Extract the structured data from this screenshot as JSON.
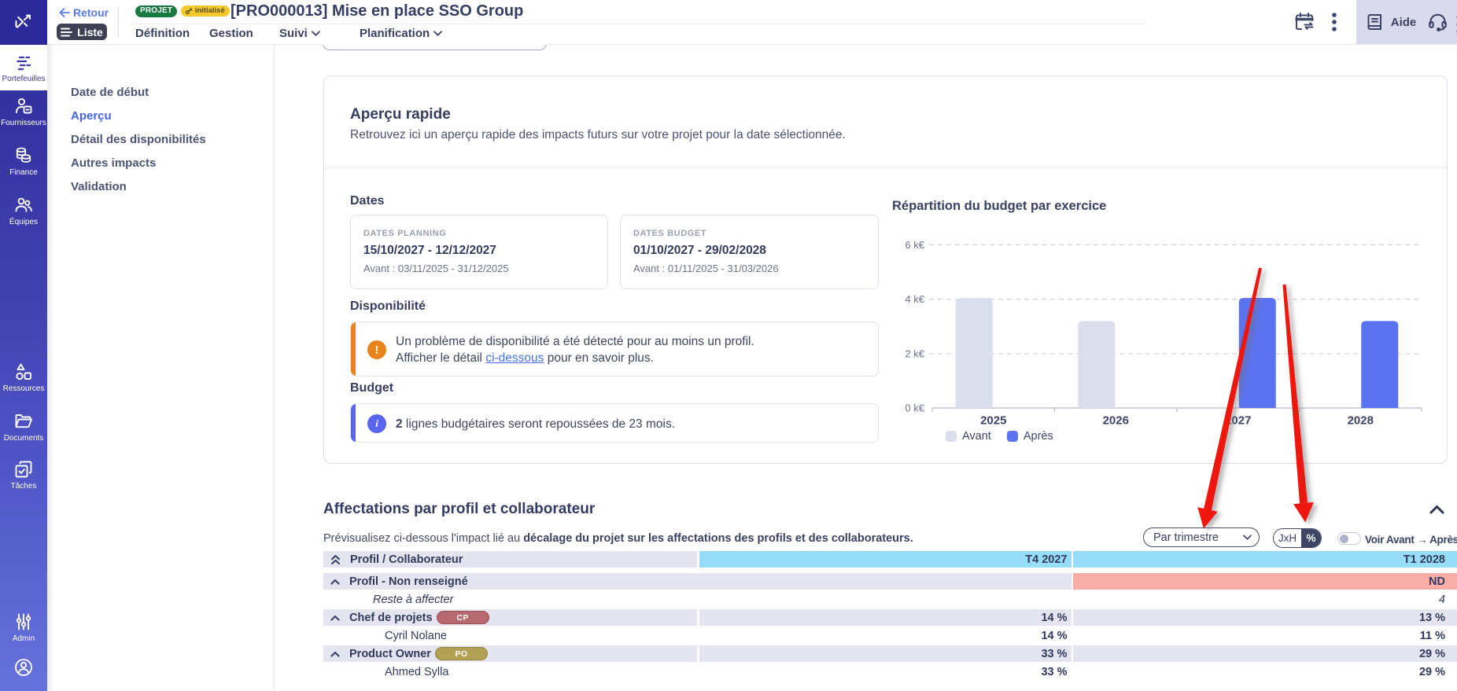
{
  "colors": {
    "sidebar_top": "#2d2b99",
    "sidebar_bottom": "#6673dc",
    "accent_blue": "#4365e6",
    "badge_project_green": "#187a42",
    "badge_status_yellow": "#f5c92e",
    "warning_orange": "#e8841c",
    "info_indigo": "#5a66f2",
    "table_header_cyan": "#97dcf8",
    "table_nd_salmon": "#f8aea6",
    "table_row_lavender": "#e4e5f1",
    "bar_before": "#dbdeed",
    "bar_after": "#5b73f0",
    "arrow_red": "#ee1408",
    "link_blue": "#4a72e8",
    "badge_cp": "#b56a6f",
    "badge_cp_border": "#a04a52",
    "badge_po": "#b2a155",
    "badge_po_border": "#968434"
  },
  "sidebar": {
    "items": [
      {
        "label": "Portefeuilles",
        "icon": "portfolio-icon",
        "active": true
      },
      {
        "label": "Fournisseurs",
        "icon": "suppliers-icon",
        "active": false
      },
      {
        "label": "Finance",
        "icon": "finance-icon",
        "active": false
      },
      {
        "label": "Équipes",
        "icon": "teams-icon",
        "active": false
      },
      {
        "label": "Ressources",
        "icon": "resources-icon",
        "active": false
      },
      {
        "label": "Documents",
        "icon": "documents-icon",
        "active": false
      },
      {
        "label": "Tâches",
        "icon": "tasks-icon",
        "active": false
      },
      {
        "label": "Admin",
        "icon": "admin-icon",
        "active": false
      }
    ]
  },
  "header": {
    "back_label": "Retour",
    "list_button": "Liste",
    "type_badge": "PROJET",
    "status_badge": "initialisé",
    "title": "[PRO000013] Mise en place SSO Group",
    "tabs": [
      {
        "label": "Définition",
        "dropdown": false
      },
      {
        "label": "Gestion",
        "dropdown": false
      },
      {
        "label": "Suivi",
        "dropdown": true
      },
      {
        "label": "Planification",
        "dropdown": true
      }
    ],
    "help_label": "Aide"
  },
  "subnav": {
    "items": [
      {
        "label": "Date de début",
        "active": false
      },
      {
        "label": "Aperçu",
        "active": true
      },
      {
        "label": "Détail des disponibilités",
        "active": false
      },
      {
        "label": "Autres impacts",
        "active": false
      },
      {
        "label": "Validation",
        "active": false
      }
    ]
  },
  "overview": {
    "title": "Aperçu rapide",
    "subtitle": "Retrouvez ici un aperçu rapide des impacts futurs sur votre projet pour la date sélectionnée.",
    "dates_heading": "Dates",
    "date_boxes": [
      {
        "label": "DATES PLANNING",
        "value": "15/10/2027 - 12/12/2027",
        "before": "Avant : 03/11/2025 - 31/12/2025"
      },
      {
        "label": "DATES BUDGET",
        "value": "01/10/2027 - 29/02/2028",
        "before": "Avant : 01/11/2025 - 31/03/2026"
      }
    ],
    "availability_heading": "Disponibilité",
    "availability_line1": "Un problème de disponibilité a été détecté pour au moins un profil.",
    "availability_line2_prefix": "Afficher le détail ",
    "availability_line2_link": "ci-dessous",
    "availability_line2_suffix": " pour en savoir plus.",
    "budget_heading": "Budget",
    "budget_bold": "2",
    "budget_text": " lignes budgétaires seront repoussées de 23 mois."
  },
  "chart_data": {
    "type": "bar",
    "title": "Répartition du budget par exercice",
    "categories": [
      "2025",
      "2026",
      "2027",
      "2028"
    ],
    "series": [
      {
        "name": "Avant",
        "color": "#dbdeed",
        "values": [
          4.05,
          3.2,
          0,
          0
        ]
      },
      {
        "name": "Après",
        "color": "#5b73f0",
        "values": [
          0,
          0,
          4.05,
          3.2
        ]
      }
    ],
    "ylabel": "",
    "xlabel": "",
    "ylim": [
      0,
      6
    ],
    "yticks": [
      0,
      2,
      4,
      6
    ],
    "ytick_suffix": " k€",
    "grid": true,
    "legend_position": "bottom-left"
  },
  "assignments": {
    "title": "Affectations par profil et collaborateur",
    "subtitle_normal": "Prévisualisez ci-dessous l'impact lié au ",
    "subtitle_bold": "décalage du projet sur les affectations des profils et des collaborateurs.",
    "controls": {
      "period_select_value": "Par trimestre",
      "unit_options": [
        "JxH",
        "%"
      ],
      "unit_selected": "%",
      "switch_label": "Voir Avant → Après"
    },
    "table": {
      "first_col_header": "Profil / Collaborateur",
      "period_headers": [
        "T4 2027",
        "T1 2028"
      ],
      "rows": [
        {
          "type": "group",
          "label": "Profil - Non renseigné",
          "v1": "",
          "v2": "ND"
        },
        {
          "type": "italic",
          "label": "Reste à affecter",
          "v1": "",
          "v2": "4"
        },
        {
          "type": "group",
          "label": "Chef de projets",
          "badge": "CP",
          "v1": "14 %",
          "v2": "13 %"
        },
        {
          "type": "person",
          "label": "Cyril Nolane",
          "v1": "14 %",
          "v2": "11 %"
        },
        {
          "type": "group",
          "label": "Product Owner",
          "badge": "PO",
          "v1": "33 %",
          "v2": "29 %"
        },
        {
          "type": "person",
          "label": "Ahmed Sylla",
          "v1": "33 %",
          "v2": "29 %"
        }
      ]
    }
  }
}
